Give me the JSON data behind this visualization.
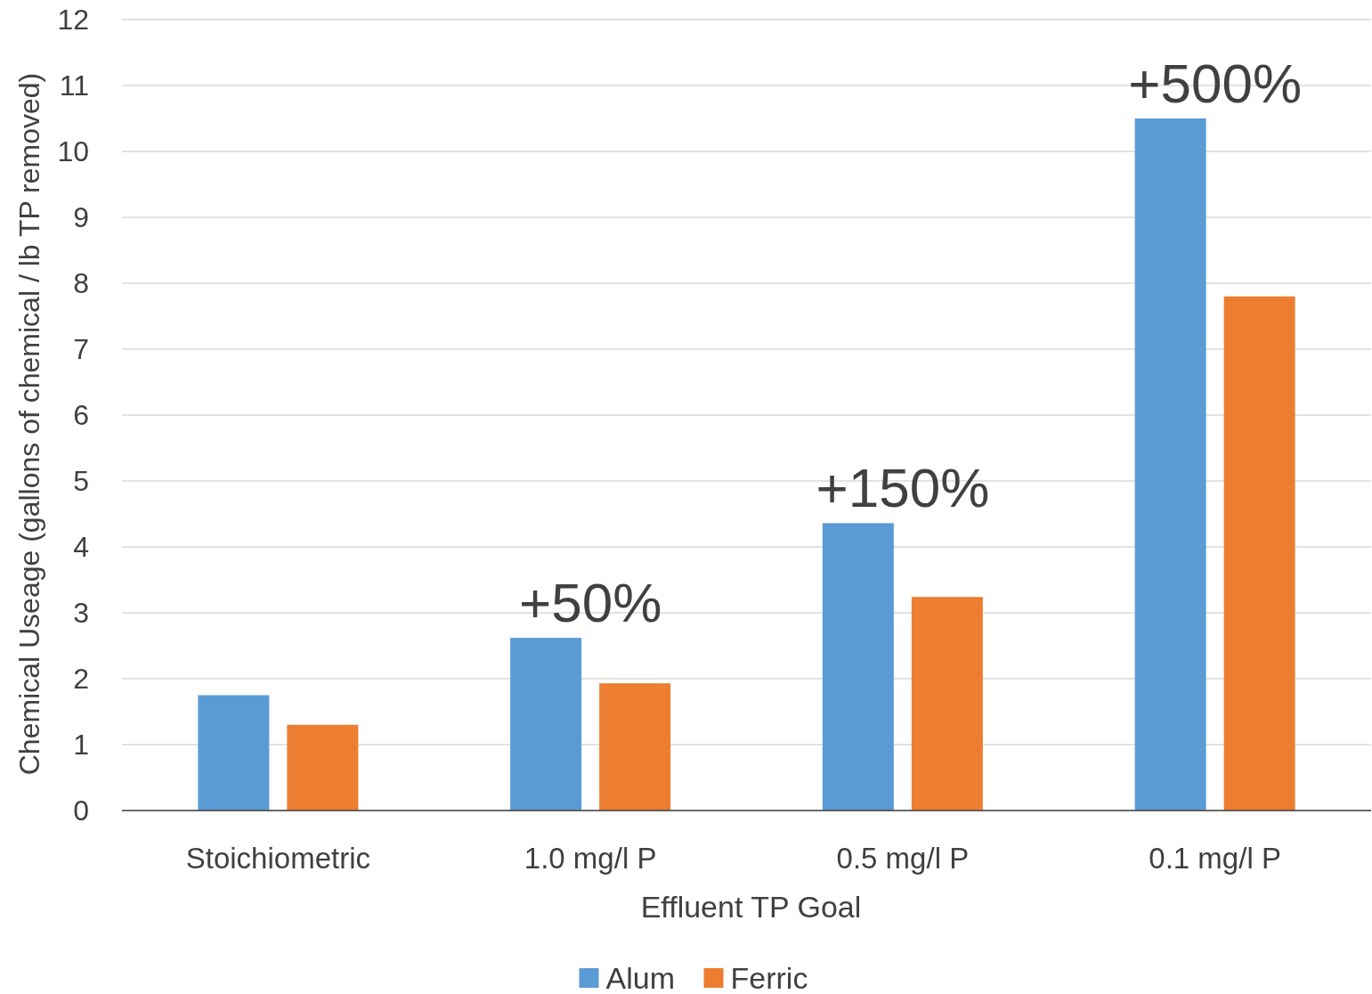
{
  "chart_data": {
    "type": "bar",
    "xlabel": "Effluent TP Goal",
    "ylabel": "Chemical Useage (gallons of chemical / lb TP removed)",
    "categories": [
      "Stoichiometric",
      "1.0 mg/l P",
      "0.5 mg/l P",
      "0.1 mg/l P"
    ],
    "series": [
      {
        "name": "Alum",
        "color": "#5b9bd5",
        "values": [
          1.75,
          2.62,
          4.36,
          10.5
        ]
      },
      {
        "name": "Ferric",
        "color": "#ed7d31",
        "values": [
          1.3,
          1.93,
          3.24,
          7.8
        ]
      }
    ],
    "ylim": [
      0,
      12
    ],
    "yticks": [
      0,
      1,
      2,
      3,
      4,
      5,
      6,
      7,
      8,
      9,
      10,
      11,
      12
    ],
    "grid": "y",
    "legend": "bottom",
    "annotations": [
      "+50%",
      "+150%",
      "+500%"
    ]
  }
}
